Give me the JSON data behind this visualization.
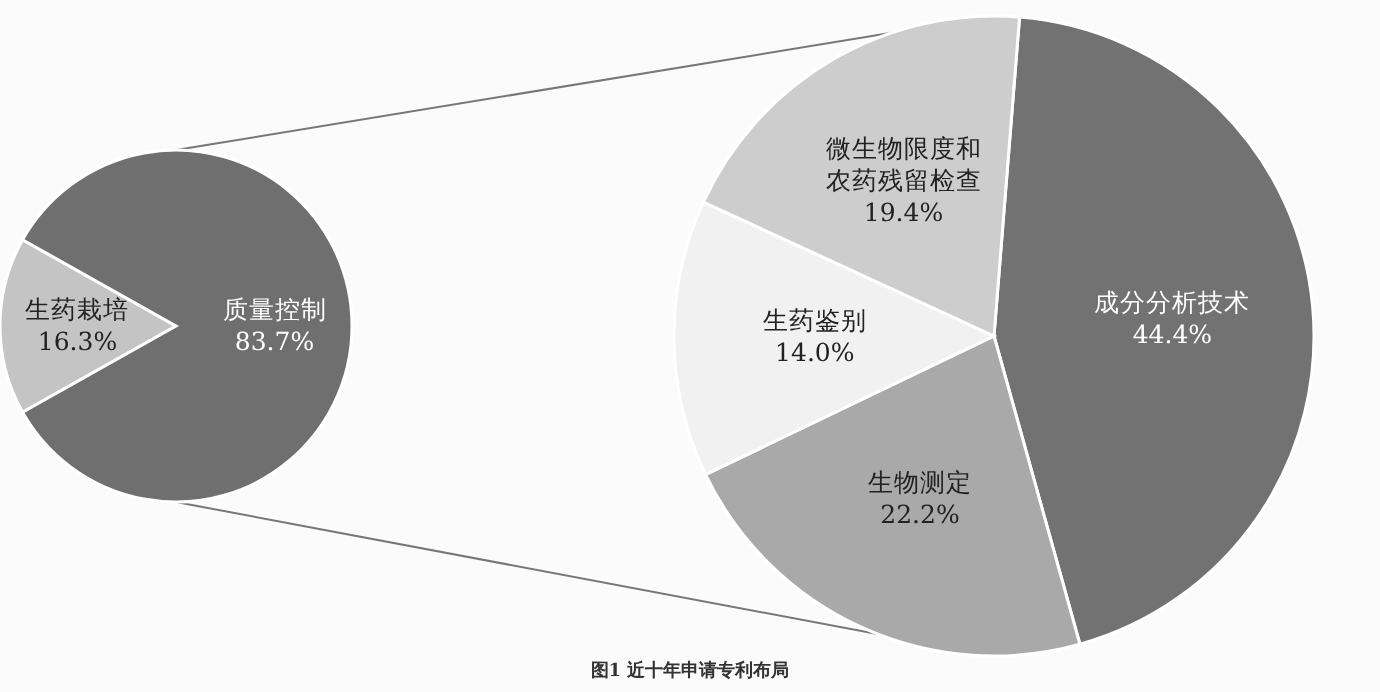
{
  "chart_data": [
    {
      "type": "pie",
      "categories": [
        "生药栽培",
        "质量控制"
      ],
      "values": [
        16.3,
        83.7
      ],
      "value_labels": [
        "16.3%",
        "83.7%"
      ],
      "colors": [
        "#c4c4c4",
        "#6f6f6f"
      ],
      "annotations": [
        "图1 近十年申请专利布局"
      ]
    },
    {
      "type": "pie",
      "categories": [
        "成分分析技术",
        "生物测定",
        "生药鉴别",
        "微生物限度和农药残留检查"
      ],
      "values": [
        44.4,
        22.2,
        14.0,
        19.4
      ],
      "value_labels": [
        "44.4%",
        "22.2%",
        "14.0%",
        "19.4%"
      ],
      "colors": [
        "#727272",
        "#a9a9a9",
        "#f1f1f1",
        "#cdcdcd"
      ]
    }
  ]
}
